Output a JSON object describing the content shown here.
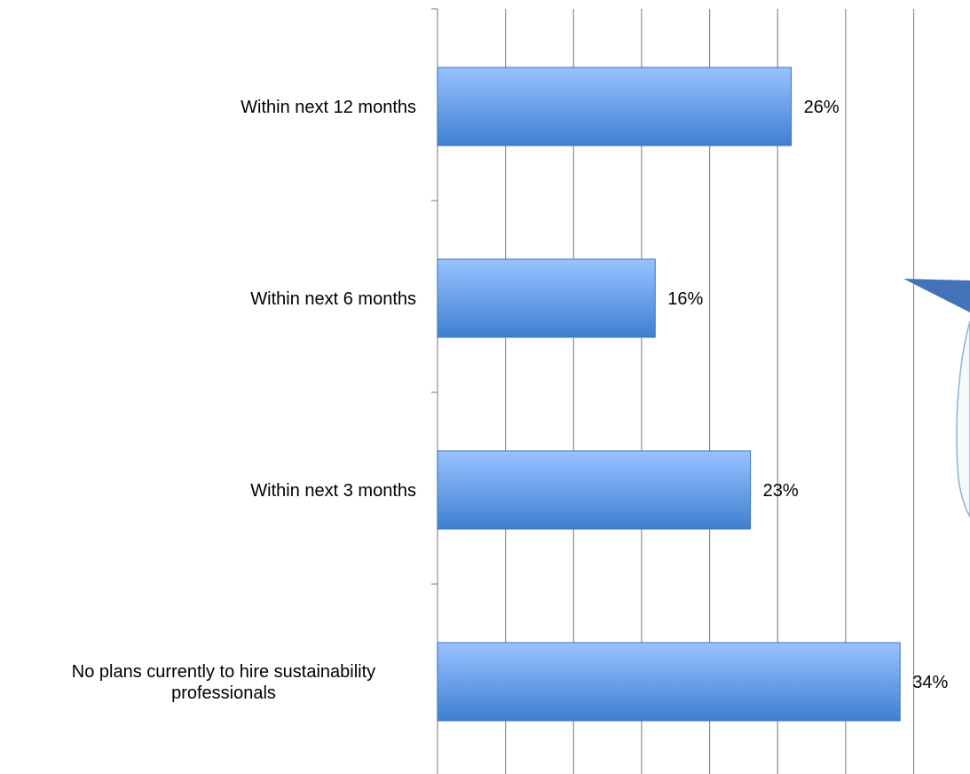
{
  "chart_data": {
    "type": "bar",
    "orientation": "horizontal",
    "categories": [
      "Within next 12 months",
      "Within next 6 months",
      "Within next 3 months",
      "No plans currently to hire sustainability professionals"
    ],
    "category_label_lines": [
      [
        "Within next 12 months"
      ],
      [
        "Within next 6 months"
      ],
      [
        "Within next 3 months"
      ],
      [
        "No plans currently to hire sustainability",
        "professionals"
      ]
    ],
    "values": [
      26,
      16,
      23,
      34
    ],
    "data_labels": [
      "26%",
      "16%",
      "23%",
      "34%"
    ],
    "value_unit": "%",
    "xlim": [
      0,
      35
    ],
    "x_gridline_step": 5,
    "grid": true,
    "legend": "none",
    "title": "",
    "xlabel": "",
    "ylabel": ""
  },
  "colors": {
    "bar_top": "#99c2ff",
    "bar_bottom": "#3f7fd1",
    "bar_edge": "#3a72bd",
    "gridline": "#8c8c8c",
    "callout": "#4472b8",
    "bubble_fill": "#f4f9fb",
    "bubble_edge": "#8fb4c9"
  }
}
